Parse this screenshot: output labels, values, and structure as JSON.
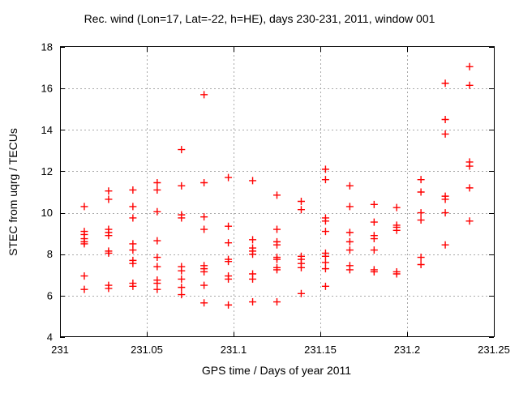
{
  "chart_data": {
    "type": "scatter",
    "title": "Rec. wind (Lon=17, Lat=-22, h=HE), days 230-231, 2011, window 001",
    "xlabel": "GPS time / Days of year 2011",
    "ylabel": "STEC from uqrg / TECUs",
    "xlim": [
      231,
      231.25
    ],
    "ylim": [
      4,
      18
    ],
    "xticks": [
      231,
      231.05,
      231.1,
      231.15,
      231.2,
      231.25
    ],
    "xtick_labels": [
      "231",
      "231.05",
      "231.1",
      "231.15",
      "231.2",
      "231.25"
    ],
    "yticks": [
      4,
      6,
      8,
      10,
      12,
      14,
      16,
      18
    ],
    "ytick_labels": [
      "4",
      "6",
      "8",
      "10",
      "12",
      "14",
      "16",
      "18"
    ],
    "grid": true,
    "legend_position": "none",
    "background_color": "#ffffff",
    "grid_color": "#aaaaaa",
    "axis_color": "#000000",
    "marker": {
      "shape": "plus",
      "color": "#ff0000",
      "size": 4.5
    },
    "series": [
      {
        "name": "STEC from uqrg",
        "points": [
          [
            231.014,
            10.3
          ],
          [
            231.014,
            9.1
          ],
          [
            231.014,
            8.95
          ],
          [
            231.014,
            8.75
          ],
          [
            231.014,
            8.6
          ],
          [
            231.014,
            8.5
          ],
          [
            231.014,
            6.95
          ],
          [
            231.014,
            6.3
          ],
          [
            231.028,
            11.05
          ],
          [
            231.028,
            10.65
          ],
          [
            231.028,
            9.2
          ],
          [
            231.028,
            9.05
          ],
          [
            231.028,
            8.9
          ],
          [
            231.028,
            8.15
          ],
          [
            231.028,
            8.05
          ],
          [
            231.028,
            6.5
          ],
          [
            231.028,
            6.35
          ],
          [
            231.042,
            11.1
          ],
          [
            231.042,
            10.3
          ],
          [
            231.042,
            9.75
          ],
          [
            231.042,
            8.5
          ],
          [
            231.042,
            8.2
          ],
          [
            231.042,
            7.7
          ],
          [
            231.042,
            7.55
          ],
          [
            231.042,
            6.6
          ],
          [
            231.042,
            6.45
          ],
          [
            231.056,
            11.45
          ],
          [
            231.056,
            11.1
          ],
          [
            231.056,
            10.05
          ],
          [
            231.056,
            8.65
          ],
          [
            231.056,
            7.85
          ],
          [
            231.056,
            7.4
          ],
          [
            231.056,
            6.75
          ],
          [
            231.056,
            6.6
          ],
          [
            231.056,
            6.3
          ],
          [
            231.07,
            13.05
          ],
          [
            231.07,
            11.3
          ],
          [
            231.07,
            9.9
          ],
          [
            231.07,
            9.75
          ],
          [
            231.07,
            7.4
          ],
          [
            231.07,
            7.2
          ],
          [
            231.07,
            6.8
          ],
          [
            231.07,
            6.4
          ],
          [
            231.07,
            6.05
          ],
          [
            231.083,
            15.7
          ],
          [
            231.083,
            11.45
          ],
          [
            231.083,
            9.8
          ],
          [
            231.083,
            9.2
          ],
          [
            231.083,
            7.45
          ],
          [
            231.083,
            7.3
          ],
          [
            231.083,
            7.15
          ],
          [
            231.083,
            6.5
          ],
          [
            231.083,
            5.65
          ],
          [
            231.097,
            11.7
          ],
          [
            231.097,
            9.35
          ],
          [
            231.097,
            8.55
          ],
          [
            231.097,
            7.75
          ],
          [
            231.097,
            7.65
          ],
          [
            231.097,
            6.95
          ],
          [
            231.097,
            6.8
          ],
          [
            231.097,
            5.55
          ],
          [
            231.111,
            11.55
          ],
          [
            231.111,
            8.7
          ],
          [
            231.111,
            8.3
          ],
          [
            231.111,
            8.15
          ],
          [
            231.111,
            8.0
          ],
          [
            231.111,
            7.05
          ],
          [
            231.111,
            6.8
          ],
          [
            231.111,
            5.7
          ],
          [
            231.125,
            10.85
          ],
          [
            231.125,
            9.2
          ],
          [
            231.125,
            8.6
          ],
          [
            231.125,
            8.45
          ],
          [
            231.125,
            7.85
          ],
          [
            231.125,
            7.75
          ],
          [
            231.125,
            7.35
          ],
          [
            231.125,
            7.25
          ],
          [
            231.125,
            5.7
          ],
          [
            231.139,
            10.55
          ],
          [
            231.139,
            10.15
          ],
          [
            231.139,
            7.9
          ],
          [
            231.139,
            7.75
          ],
          [
            231.139,
            7.55
          ],
          [
            231.139,
            7.35
          ],
          [
            231.139,
            6.1
          ],
          [
            231.153,
            12.1
          ],
          [
            231.153,
            11.6
          ],
          [
            231.153,
            9.75
          ],
          [
            231.153,
            9.6
          ],
          [
            231.153,
            9.1
          ],
          [
            231.153,
            8.05
          ],
          [
            231.153,
            7.9
          ],
          [
            231.153,
            7.6
          ],
          [
            231.153,
            7.3
          ],
          [
            231.153,
            6.45
          ],
          [
            231.167,
            11.3
          ],
          [
            231.167,
            10.3
          ],
          [
            231.167,
            9.05
          ],
          [
            231.167,
            8.6
          ],
          [
            231.167,
            8.2
          ],
          [
            231.167,
            7.45
          ],
          [
            231.167,
            7.25
          ],
          [
            231.181,
            10.4
          ],
          [
            231.181,
            9.55
          ],
          [
            231.181,
            8.9
          ],
          [
            231.181,
            8.75
          ],
          [
            231.181,
            8.2
          ],
          [
            231.181,
            7.25
          ],
          [
            231.181,
            7.15
          ],
          [
            231.194,
            10.25
          ],
          [
            231.194,
            9.4
          ],
          [
            231.194,
            9.3
          ],
          [
            231.194,
            9.15
          ],
          [
            231.194,
            7.15
          ],
          [
            231.194,
            7.05
          ],
          [
            231.208,
            11.6
          ],
          [
            231.208,
            11.0
          ],
          [
            231.208,
            10.0
          ],
          [
            231.208,
            9.65
          ],
          [
            231.208,
            7.85
          ],
          [
            231.208,
            7.5
          ],
          [
            231.222,
            16.25
          ],
          [
            231.222,
            14.5
          ],
          [
            231.222,
            13.8
          ],
          [
            231.222,
            10.8
          ],
          [
            231.222,
            10.65
          ],
          [
            231.222,
            10.0
          ],
          [
            231.222,
            8.45
          ],
          [
            231.236,
            17.05
          ],
          [
            231.236,
            16.15
          ],
          [
            231.236,
            12.45
          ],
          [
            231.236,
            12.25
          ],
          [
            231.236,
            11.2
          ],
          [
            231.236,
            9.6
          ]
        ]
      }
    ]
  }
}
